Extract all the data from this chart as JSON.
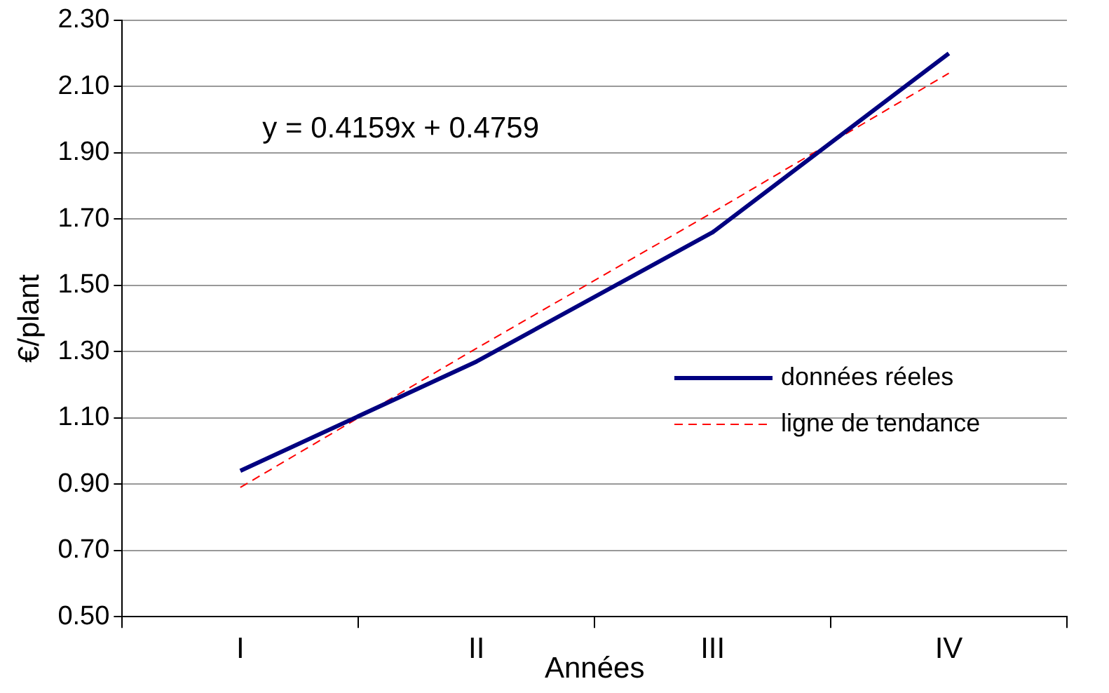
{
  "chart_data": {
    "type": "line",
    "xlabel": "Années",
    "ylabel": "€/plant",
    "categories": [
      "I",
      "II",
      "III",
      "IV"
    ],
    "series": [
      {
        "name": "données réeles",
        "color": "#000080",
        "values": [
          0.94,
          1.27,
          1.66,
          2.2
        ],
        "line_style": "solid"
      },
      {
        "name": "ligne de tendance",
        "color": "#ff0000",
        "values": [
          0.89,
          1.31,
          1.72,
          2.14
        ],
        "line_style": "dashed"
      }
    ],
    "ylim": [
      0.5,
      2.3
    ],
    "yticks": [
      {
        "value": 0.5,
        "label": "0.50"
      },
      {
        "value": 0.7,
        "label": "0.70"
      },
      {
        "value": 0.9,
        "label": "0.90"
      },
      {
        "value": 1.1,
        "label": "1.10"
      },
      {
        "value": 1.3,
        "label": "1.30"
      },
      {
        "value": 1.5,
        "label": "1.50"
      },
      {
        "value": 1.7,
        "label": "1.70"
      },
      {
        "value": 1.9,
        "label": "1.90"
      },
      {
        "value": 2.1,
        "label": "2.10"
      },
      {
        "value": 2.3,
        "label": "2.30"
      }
    ],
    "grid": "y",
    "legend": "right",
    "marker": "none",
    "annotations": [
      "y = 0.4159x + 0.4759"
    ]
  }
}
